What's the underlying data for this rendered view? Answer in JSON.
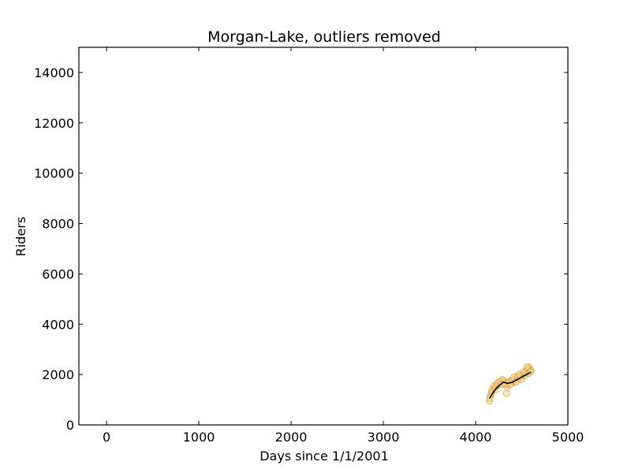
{
  "chart_data": {
    "type": "scatter",
    "title": "Morgan-Lake, outliers removed",
    "xlabel": "Days since 1/1/2001",
    "ylabel": "Riders",
    "xlim": [
      -300,
      5000
    ],
    "ylim": [
      0,
      15000
    ],
    "xticks": [
      0,
      1000,
      2000,
      3000,
      4000,
      5000
    ],
    "yticks": [
      0,
      2000,
      4000,
      6000,
      8000,
      10000,
      12000,
      14000
    ],
    "grid": false,
    "colors": {
      "points_fill": "#f4d9a8",
      "points_edge": "#d49a2a",
      "trend": "#000000",
      "axes": "#000000"
    },
    "series": [
      {
        "kind": "scatter",
        "x": [
          4150,
          4160,
          4170,
          4180,
          4190,
          4200,
          4210,
          4220,
          4230,
          4240,
          4250,
          4260,
          4270,
          4280,
          4290,
          4300,
          4310,
          4320,
          4330,
          4340,
          4350,
          4360,
          4370,
          4380,
          4390,
          4400,
          4410,
          4420,
          4430,
          4440,
          4450,
          4460,
          4470,
          4480,
          4490,
          4500,
          4510,
          4520,
          4530,
          4540,
          4550,
          4560,
          4570,
          4580,
          4590,
          4600,
          4155,
          4175,
          4195,
          4215,
          4235,
          4255,
          4275,
          4295,
          4315,
          4335,
          4355,
          4375,
          4395,
          4415,
          4435,
          4455,
          4475,
          4495,
          4515,
          4535,
          4555,
          4575,
          4595
        ],
        "y": [
          950,
          1150,
          1250,
          1350,
          1400,
          1450,
          1500,
          1550,
          1550,
          1600,
          1620,
          1650,
          1700,
          1700,
          1750,
          1720,
          1700,
          1650,
          1600,
          1500,
          1600,
          1680,
          1700,
          1750,
          1700,
          1680,
          1720,
          1750,
          1800,
          1820,
          1850,
          1900,
          1850,
          1880,
          1900,
          1950,
          2000,
          2050,
          2050,
          2100,
          2150,
          2200,
          2250,
          2300,
          2200,
          2150,
          1050,
          1350,
          1550,
          1400,
          1650,
          1750,
          1600,
          1800,
          1650,
          1250,
          1700,
          1600,
          1800,
          1900,
          1700,
          1950,
          2000,
          1800,
          2100,
          1950,
          2300,
          2050,
          2100
        ]
      },
      {
        "kind": "line",
        "x": [
          4150,
          4200,
          4250,
          4300,
          4350,
          4400,
          4450,
          4500,
          4550,
          4600
        ],
        "y": [
          1050,
          1350,
          1550,
          1700,
          1650,
          1700,
          1800,
          1900,
          2000,
          2100
        ]
      }
    ]
  }
}
